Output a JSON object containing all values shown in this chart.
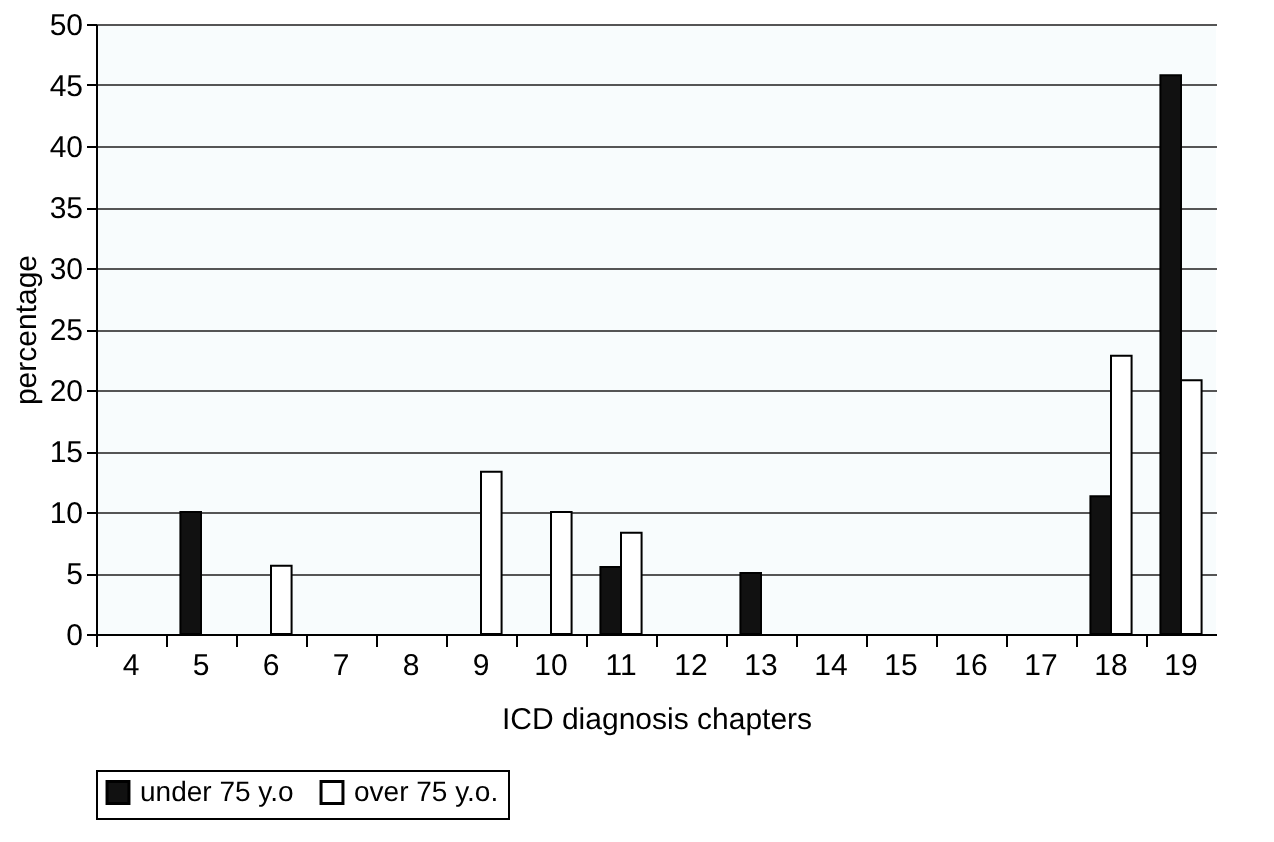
{
  "chart_data": {
    "type": "bar",
    "xlabel": "ICD diagnosis chapters",
    "ylabel": "percentage",
    "categories": [
      "4",
      "5",
      "6",
      "7",
      "8",
      "9",
      "10",
      "11",
      "12",
      "13",
      "14",
      "15",
      "16",
      "17",
      "18",
      "19"
    ],
    "series": [
      {
        "name": "under 75 y.o",
        "color": "#111111",
        "values": [
          null,
          10,
          null,
          null,
          null,
          null,
          null,
          5.5,
          null,
          5,
          null,
          null,
          null,
          null,
          11.3,
          45.8
        ]
      },
      {
        "name": "over 75 y.o.",
        "color": "#ffffff",
        "values": [
          null,
          null,
          5.6,
          null,
          null,
          13.3,
          10,
          8.3,
          null,
          null,
          null,
          null,
          null,
          null,
          22.8,
          20.8
        ]
      }
    ],
    "ylim": [
      0,
      50
    ],
    "yticks": [
      0,
      5,
      10,
      15,
      20,
      25,
      30,
      35,
      40,
      45,
      50
    ],
    "grid": "y",
    "legend": "bottom"
  }
}
